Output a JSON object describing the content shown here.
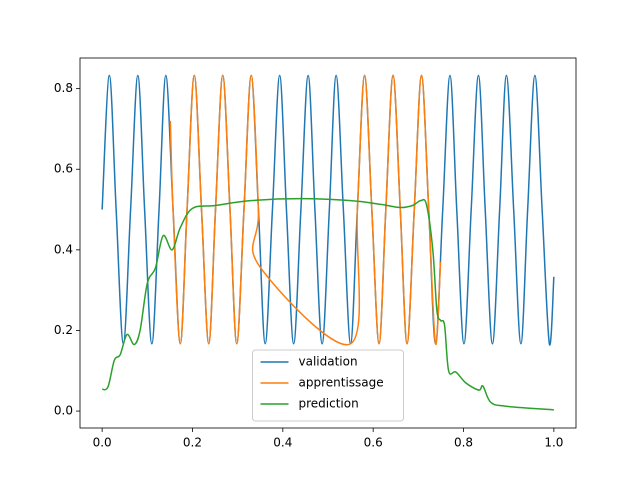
{
  "chart_data": {
    "type": "line",
    "series": [
      {
        "name": "validation",
        "color": "#1f77b4",
        "x": [
          0,
          0.016,
          0.031,
          0.047,
          0.063,
          0.079,
          0.094,
          0.11,
          0.126,
          0.141,
          0.157,
          0.173,
          0.188,
          0.204,
          0.22,
          0.236,
          0.251,
          0.267,
          0.283,
          0.298,
          0.314,
          0.33,
          0.346,
          0.361,
          0.377,
          0.393,
          0.408,
          0.424,
          0.44,
          0.456,
          0.471,
          0.487,
          0.503,
          0.518,
          0.534,
          0.55,
          0.565,
          0.581,
          0.597,
          0.613,
          0.628,
          0.644,
          0.66,
          0.675,
          0.691,
          0.707,
          0.723,
          0.738,
          0.754,
          0.77,
          0.785,
          0.801,
          0.817,
          0.833,
          0.848,
          0.864,
          0.88,
          0.895,
          0.911,
          0.927,
          0.942,
          0.958,
          0.974,
          0.99,
          1.0
        ],
        "values": [
          0.5,
          0.833,
          0.5,
          0.167,
          0.5,
          0.833,
          0.5,
          0.167,
          0.5,
          0.833,
          0.5,
          0.167,
          0.5,
          0.833,
          0.5,
          0.167,
          0.5,
          0.833,
          0.5,
          0.167,
          0.5,
          0.833,
          0.5,
          0.167,
          0.5,
          0.833,
          0.5,
          0.167,
          0.5,
          0.833,
          0.5,
          0.167,
          0.5,
          0.833,
          0.5,
          0.167,
          0.5,
          0.833,
          0.5,
          0.167,
          0.5,
          0.833,
          0.5,
          0.167,
          0.5,
          0.833,
          0.5,
          0.167,
          0.5,
          0.833,
          0.5,
          0.167,
          0.5,
          0.833,
          0.5,
          0.167,
          0.5,
          0.833,
          0.5,
          0.167,
          0.5,
          0.833,
          0.5,
          0.167,
          0.333
        ]
      },
      {
        "name": "apprentissage",
        "color": "#ff7f0e",
        "x": [
          0.151,
          0.157,
          0.173,
          0.188,
          0.204,
          0.22,
          0.236,
          0.251,
          0.267,
          0.283,
          0.298,
          0.314,
          0.33,
          0.346,
          0.348,
          0.55,
          0.565,
          0.581,
          0.597,
          0.613,
          0.628,
          0.644,
          0.66,
          0.675,
          0.691,
          0.707,
          0.723,
          0.738,
          0.749
        ],
        "values": [
          0.72,
          0.5,
          0.167,
          0.5,
          0.833,
          0.5,
          0.167,
          0.5,
          0.833,
          0.5,
          0.167,
          0.5,
          0.833,
          0.5,
          0.36,
          0.167,
          0.5,
          0.833,
          0.5,
          0.167,
          0.5,
          0.833,
          0.5,
          0.167,
          0.5,
          0.833,
          0.5,
          0.167,
          0.37
        ]
      },
      {
        "name": "prediction",
        "color": "#2ca02c",
        "x": [
          0,
          0.013,
          0.027,
          0.04,
          0.055,
          0.071,
          0.084,
          0.1,
          0.118,
          0.135,
          0.155,
          0.173,
          0.2,
          0.25,
          0.328,
          0.439,
          0.55,
          0.616,
          0.66,
          0.687,
          0.705,
          0.718,
          0.732,
          0.741,
          0.749,
          0.758,
          0.767,
          0.783,
          0.805,
          0.834,
          0.843,
          0.86,
          0.894,
          1.0
        ],
        "values": [
          0.054,
          0.06,
          0.126,
          0.14,
          0.19,
          0.165,
          0.2,
          0.317,
          0.355,
          0.435,
          0.4,
          0.455,
          0.503,
          0.51,
          0.522,
          0.527,
          0.522,
          0.513,
          0.505,
          0.51,
          0.522,
          0.512,
          0.4,
          0.25,
          0.225,
          0.213,
          0.1,
          0.097,
          0.07,
          0.052,
          0.062,
          0.022,
          0.012,
          0.003
        ]
      }
    ],
    "xlim": [
      -0.049,
      1.049
    ],
    "ylim": [
      -0.042,
      0.876
    ],
    "xticks": [
      {
        "value": 0,
        "label": "0.0"
      },
      0.2,
      0.4,
      0.6,
      0.8,
      {
        "value": 1,
        "label": "1.0"
      }
    ],
    "yticks": [
      {
        "value": 0,
        "label": "0.0"
      },
      0.2,
      0.4,
      0.6,
      0.8
    ],
    "legend": "lower center"
  }
}
